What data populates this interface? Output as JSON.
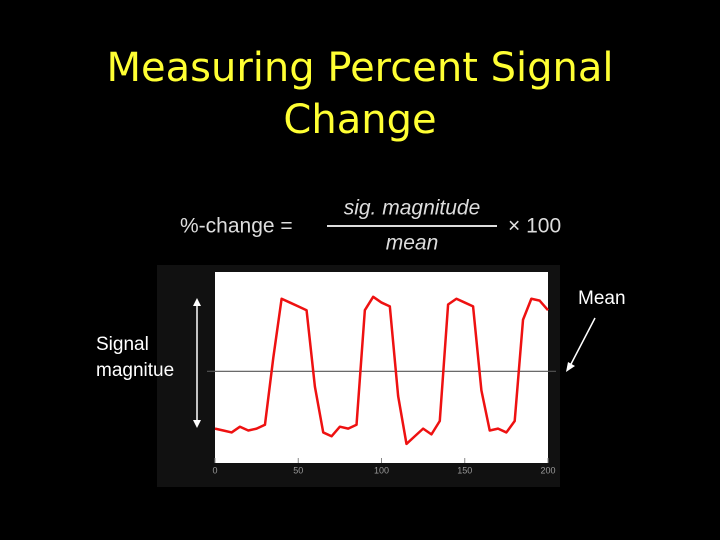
{
  "slide": {
    "title": "Measuring Percent Signal Change",
    "formula": {
      "lhs": "%-change =",
      "numerator": "sig. magnitude",
      "denominator": "mean",
      "rhs": "× 100"
    },
    "annotations": {
      "signal": "Signal magnitue",
      "mean": "Mean"
    }
  },
  "chart_data": {
    "type": "line",
    "x": [
      0,
      5,
      10,
      15,
      20,
      25,
      30,
      35,
      40,
      45,
      50,
      55,
      60,
      65,
      70,
      75,
      80,
      85,
      90,
      95,
      100,
      105,
      110,
      115,
      120,
      125,
      130,
      135,
      140,
      145,
      150,
      155,
      160,
      165,
      170,
      175,
      180,
      185,
      190,
      195,
      200
    ],
    "series": [
      {
        "color": "#ee1111",
        "values": [
          18,
          17,
          16,
          19,
          17,
          18,
          20,
          55,
          86,
          84,
          82,
          80,
          40,
          16,
          14,
          19,
          18,
          20,
          80,
          87,
          84,
          82,
          35,
          10,
          14,
          18,
          15,
          22,
          83,
          86,
          84,
          82,
          38,
          17,
          18,
          16,
          22,
          75,
          86,
          85,
          80
        ]
      }
    ],
    "mean_line": 48,
    "xlim": [
      0,
      200
    ],
    "xticks": [
      0,
      50,
      100,
      150,
      200
    ],
    "ylim": [
      0,
      100
    ]
  }
}
